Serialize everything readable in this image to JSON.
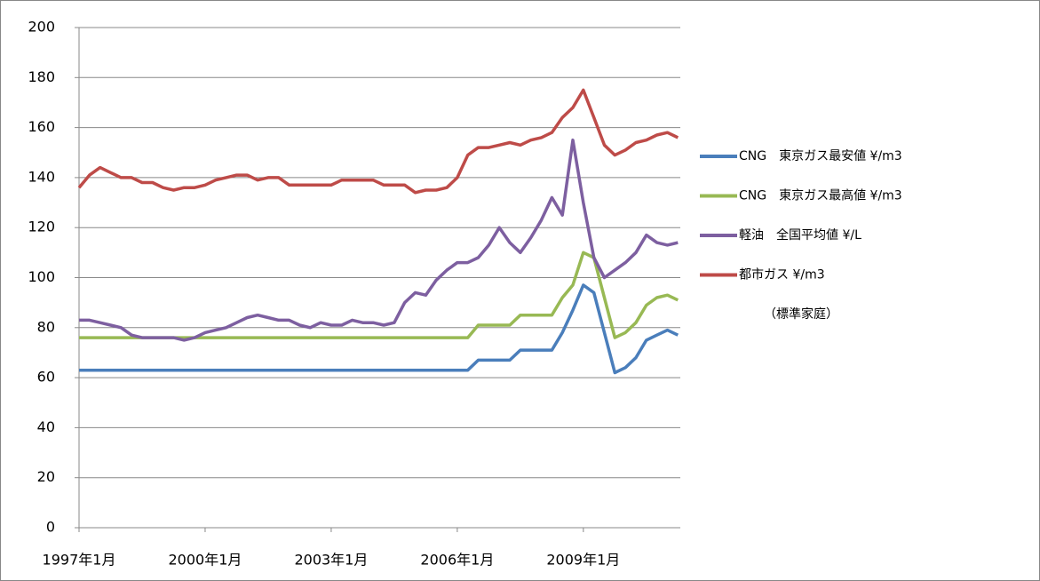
{
  "chart_data": {
    "type": "line",
    "categories": [
      "1997年1月",
      null,
      null,
      null,
      null,
      null,
      null,
      null,
      null,
      null,
      null,
      null,
      "2000年1月",
      null,
      null,
      null,
      null,
      null,
      null,
      null,
      null,
      null,
      null,
      null,
      "2003年1月",
      null,
      null,
      null,
      null,
      null,
      null,
      null,
      null,
      null,
      null,
      null,
      "2006年1月",
      null,
      null,
      null,
      null,
      null,
      null,
      null,
      null,
      null,
      null,
      null,
      "2009年1月",
      null,
      null,
      null,
      null,
      null,
      null,
      null,
      null,
      null
    ],
    "series": [
      {
        "name": "CNG　東京ガス最安値 ¥/m3",
        "color": "#4a7ebb",
        "values": [
          63,
          63,
          63,
          63,
          63,
          63,
          63,
          63,
          63,
          63,
          63,
          63,
          63,
          63,
          63,
          63,
          63,
          63,
          63,
          63,
          63,
          63,
          63,
          63,
          63,
          63,
          63,
          63,
          63,
          63,
          63,
          63,
          63,
          63,
          63,
          63,
          63,
          63,
          67,
          67,
          67,
          67,
          71,
          71,
          71,
          71,
          78,
          87,
          97,
          94,
          78,
          62,
          64,
          68,
          75,
          77,
          79,
          77
        ]
      },
      {
        "name": "CNG　東京ガス最高値 ¥/m3",
        "color": "#98b954",
        "values": [
          76,
          76,
          76,
          76,
          76,
          76,
          76,
          76,
          76,
          76,
          76,
          76,
          76,
          76,
          76,
          76,
          76,
          76,
          76,
          76,
          76,
          76,
          76,
          76,
          76,
          76,
          76,
          76,
          76,
          76,
          76,
          76,
          76,
          76,
          76,
          76,
          76,
          76,
          81,
          81,
          81,
          81,
          85,
          85,
          85,
          85,
          92,
          97,
          110,
          108,
          92,
          76,
          78,
          82,
          89,
          92,
          93,
          91
        ]
      },
      {
        "name": "軽油　全国平均値 ¥/L",
        "color": "#7d5fa0",
        "values": [
          83,
          83,
          82,
          81,
          80,
          77,
          76,
          76,
          76,
          76,
          75,
          76,
          78,
          79,
          80,
          82,
          84,
          85,
          84,
          83,
          83,
          81,
          80,
          82,
          81,
          81,
          83,
          82,
          82,
          81,
          82,
          90,
          94,
          93,
          99,
          103,
          106,
          106,
          108,
          113,
          120,
          114,
          110,
          116,
          123,
          132,
          125,
          155,
          130,
          108,
          100,
          103,
          106,
          110,
          117,
          114,
          113,
          114
        ]
      },
      {
        "name": "都市ガス ¥/m3",
        "color": "#be4b48",
        "values": [
          136,
          141,
          144,
          142,
          140,
          140,
          138,
          138,
          136,
          135,
          136,
          136,
          137,
          139,
          140,
          141,
          141,
          139,
          140,
          140,
          137,
          137,
          137,
          137,
          137,
          139,
          139,
          139,
          139,
          137,
          137,
          137,
          134,
          135,
          135,
          136,
          140,
          149,
          152,
          152,
          153,
          154,
          153,
          155,
          156,
          158,
          164,
          168,
          175,
          164,
          153,
          149,
          151,
          154,
          155,
          157,
          158,
          156
        ]
      }
    ],
    "annotation": "（標準家庭）",
    "ylim": [
      0,
      200
    ],
    "yticks": [
      0,
      20,
      40,
      60,
      80,
      100,
      120,
      140,
      160,
      180,
      200
    ],
    "grid": true,
    "legend": "right"
  }
}
